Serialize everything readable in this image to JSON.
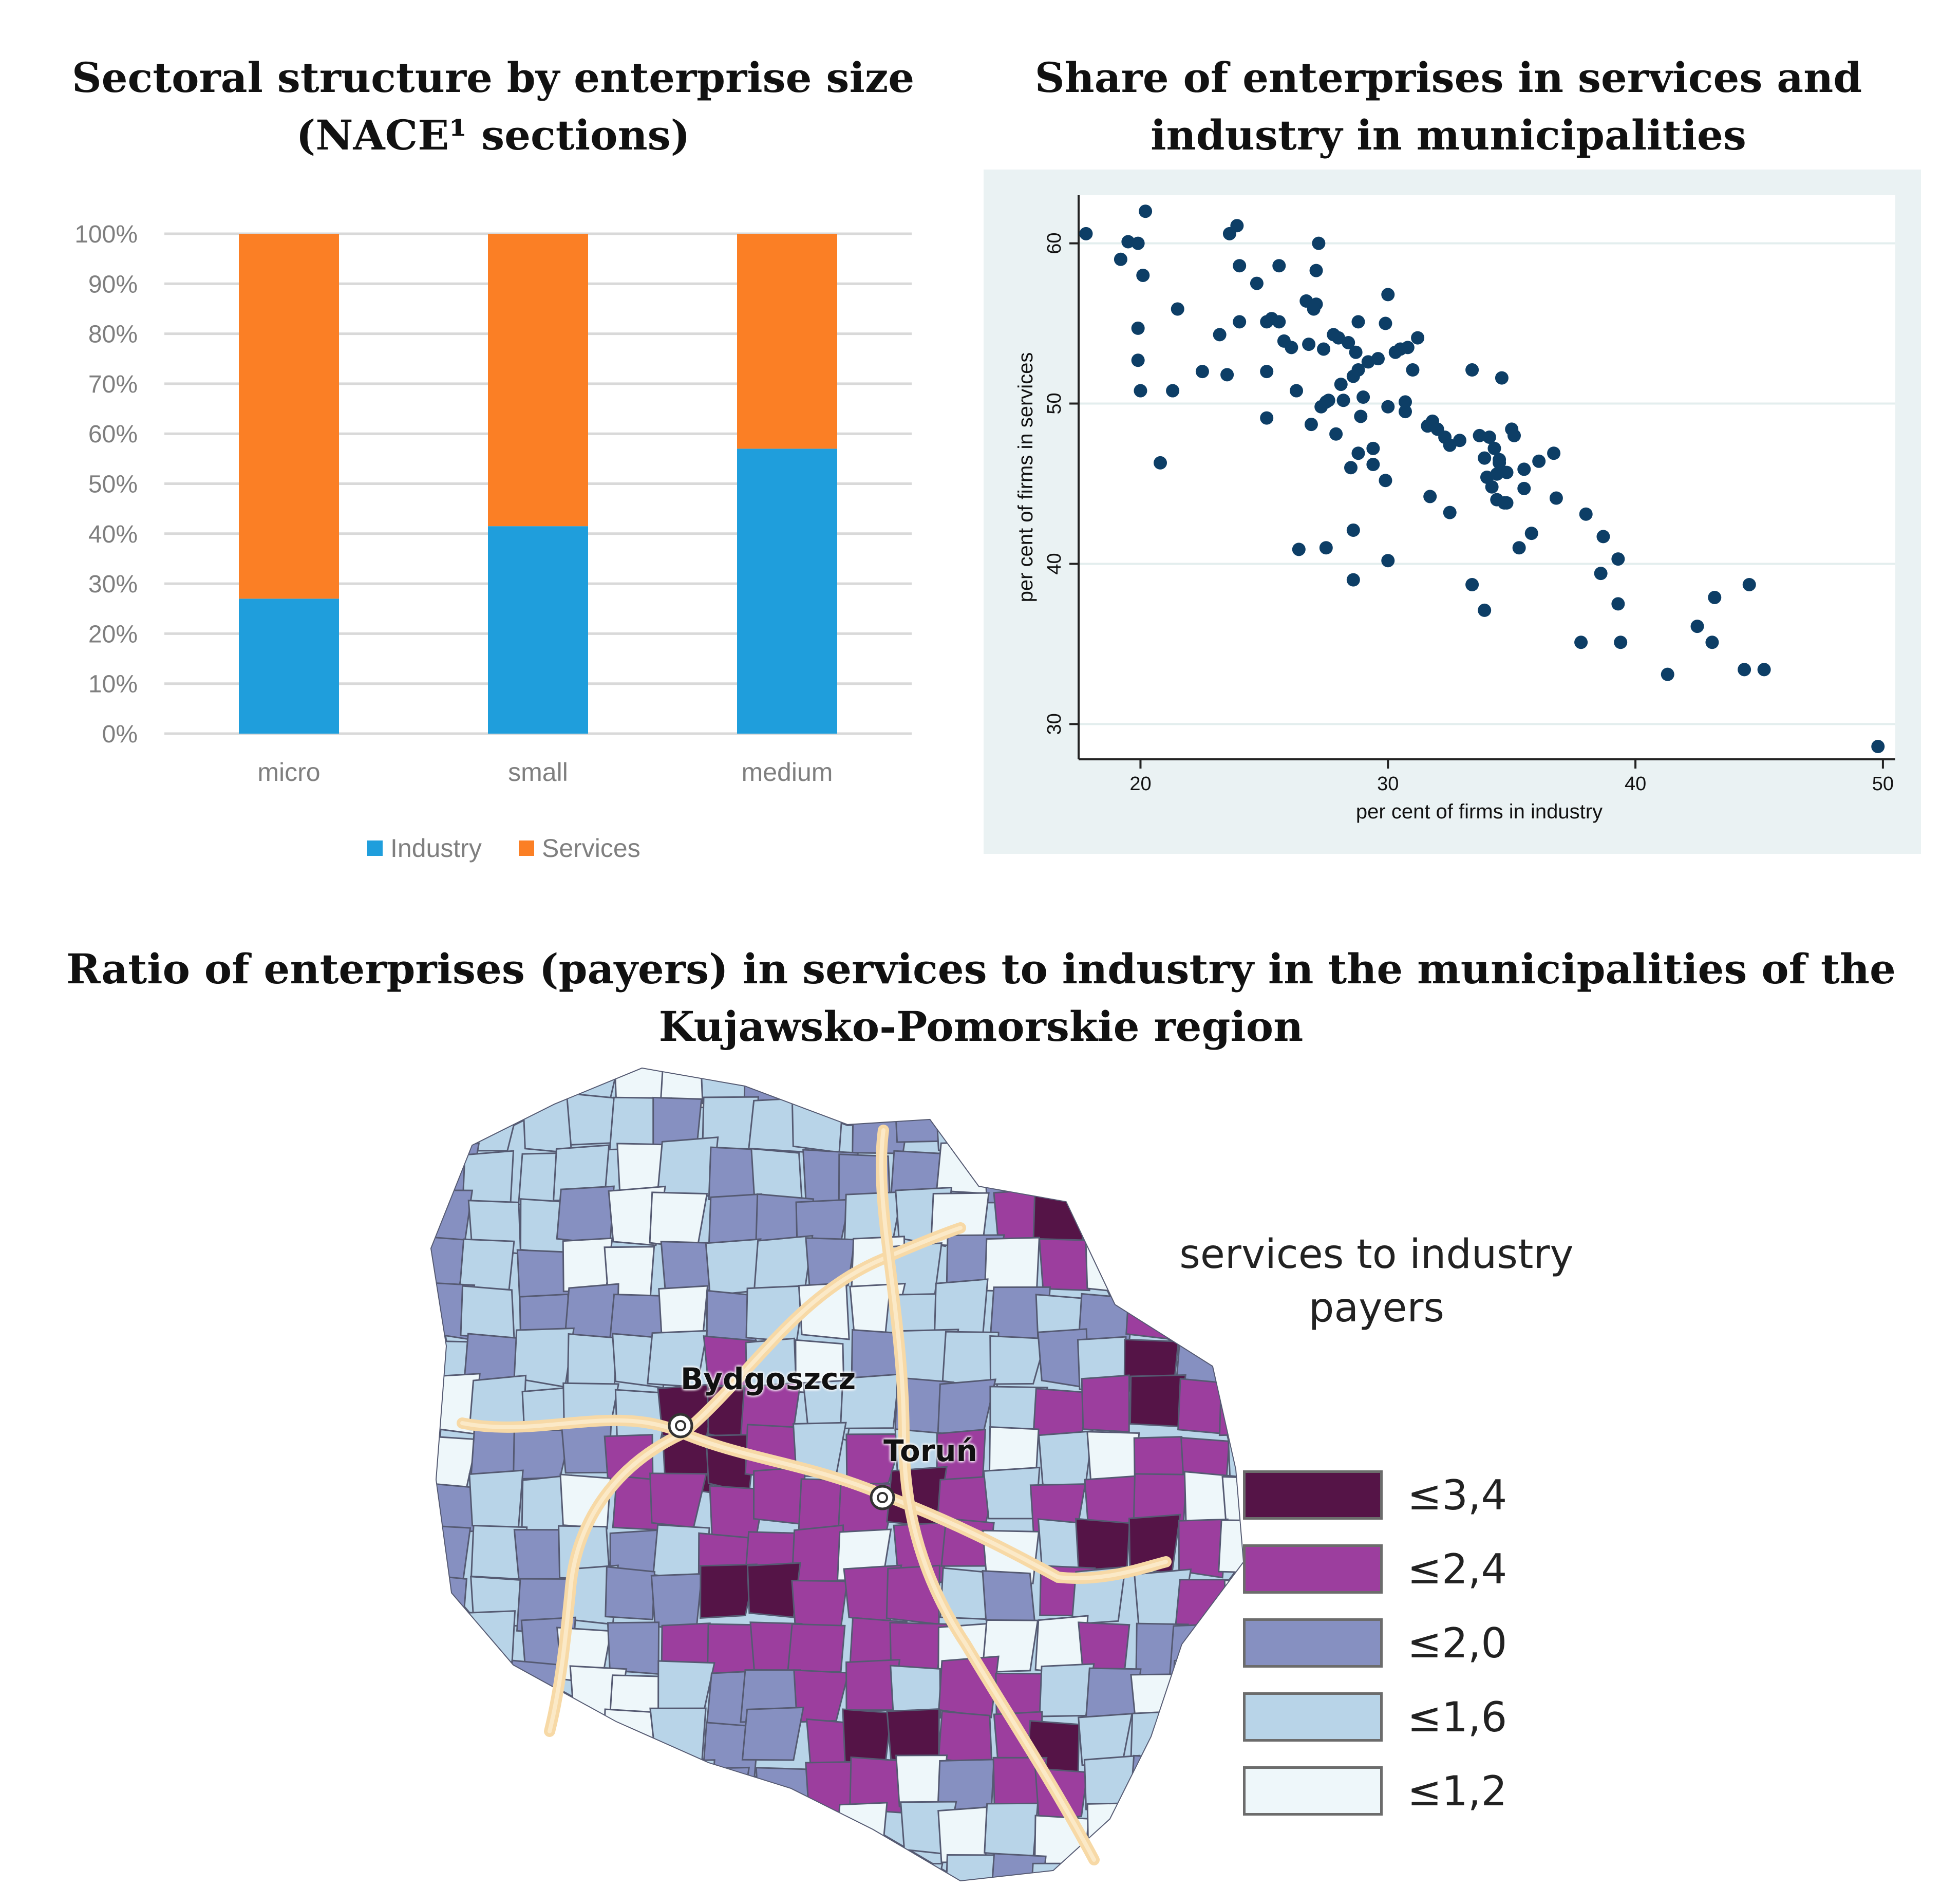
{
  "titles": {
    "bar": "Sectoral structure by enterprise size (NACE¹ sections)",
    "scatter": "Share of enterprises in services and industry in municipalities",
    "map": "Ratio of enterprises (payers) in services to industry in the municipalities of the Kujawsko-Pomorskie region"
  },
  "colors": {
    "industry": "#1f9edc",
    "services": "#fb7f25",
    "scatter_point": "#0d3e66",
    "scatter_bg": "#eaf2f3",
    "map_roads": "#f7d9a6",
    "road_core": "#fbe9c7",
    "map_border": "#555a72"
  },
  "chart_data": [
    {
      "type": "bar",
      "stacked": true,
      "title": "Sectoral structure by enterprise size (NACE¹ sections)",
      "categories": [
        "micro",
        "small",
        "medium"
      ],
      "series": [
        {
          "name": "Industry",
          "values": [
            27,
            41.5,
            57
          ]
        },
        {
          "name": "Services",
          "values": [
            73,
            58.5,
            43
          ]
        }
      ],
      "ylim": [
        0,
        100
      ],
      "yticks": [
        "0%",
        "10%",
        "20%",
        "30%",
        "40%",
        "50%",
        "60%",
        "70%",
        "80%",
        "90%",
        "100%"
      ],
      "legend": [
        "Industry",
        "Services"
      ],
      "legend_position": "bottom"
    },
    {
      "type": "scatter",
      "title": "Share of enterprises in services and industry in municipalities",
      "xlabel": "per cent of firms in industry",
      "ylabel": "per cent of firms in services",
      "xlim": [
        17.5,
        50.5
      ],
      "ylim": [
        27.8,
        63.0
      ],
      "xticks": [
        "20",
        "30",
        "40",
        "50"
      ],
      "yticks": [
        "30",
        "40",
        "50",
        "60"
      ],
      "x": [
        17.8,
        19.2,
        19.5,
        20.2,
        19.9,
        20.1,
        21.5,
        19.9,
        19.9,
        20.0,
        20.8,
        21.3,
        22.5,
        23.2,
        23.6,
        23.5,
        24.0,
        23.9,
        24.0,
        24.7,
        25.1,
        25.3,
        25.6,
        25.1,
        25.1,
        25.6,
        25.8,
        26.1,
        26.3,
        26.7,
        26.8,
        27.0,
        27.1,
        27.2,
        27.1,
        26.9,
        27.3,
        27.4,
        27.6,
        27.8,
        27.9,
        28.1,
        28.0,
        28.2,
        28.4,
        28.6,
        28.7,
        28.8,
        28.8,
        29.0,
        29.2,
        29.4,
        29.6,
        29.9,
        30.0,
        30.3,
        30.5,
        30.7,
        30.7,
        30.8,
        31.0,
        31.2,
        27.5,
        28.9,
        29.4,
        28.6,
        28.5,
        28.8,
        29.9,
        30.0,
        31.6,
        31.8,
        32.0,
        32.3,
        32.5,
        32.9,
        33.4,
        33.7,
        33.9,
        34.1,
        34.3,
        34.5,
        34.6,
        34.8,
        35.0,
        35.1,
        35.5,
        35.5,
        35.8,
        36.1,
        36.7,
        36.8,
        34.2,
        34.0,
        34.4,
        34.4,
        34.8,
        31.7,
        32.5,
        33.4,
        33.9,
        35.3,
        34.7,
        34.5,
        26.4,
        27.5,
        30.0,
        28.6,
        37.8,
        38.0,
        38.6,
        38.7,
        39.3,
        39.4,
        39.3,
        41.3,
        42.5,
        43.2,
        43.1,
        44.4,
        44.6,
        45.2,
        49.8
      ],
      "y": [
        60.6,
        59.0,
        60.1,
        62.0,
        60.0,
        58.0,
        55.9,
        54.7,
        52.7,
        50.8,
        46.3,
        50.8,
        52.0,
        54.3,
        60.6,
        51.8,
        55.1,
        61.1,
        58.6,
        57.5,
        55.1,
        55.3,
        55.1,
        52.0,
        49.1,
        58.6,
        53.9,
        53.5,
        50.8,
        56.4,
        53.7,
        55.9,
        58.3,
        60.0,
        56.2,
        48.7,
        49.8,
        53.4,
        50.2,
        54.3,
        48.1,
        51.2,
        54.1,
        50.2,
        53.8,
        51.7,
        53.2,
        52.1,
        55.1,
        50.4,
        52.6,
        46.2,
        52.8,
        55.0,
        56.8,
        53.2,
        53.4,
        49.5,
        50.1,
        53.5,
        52.1,
        54.1,
        50.1,
        49.2,
        47.2,
        42.1,
        46.0,
        46.9,
        45.2,
        49.8,
        48.6,
        48.9,
        48.4,
        47.9,
        47.4,
        47.7,
        52.1,
        48.0,
        46.6,
        47.9,
        47.2,
        46.3,
        51.6,
        45.7,
        48.4,
        48.0,
        45.9,
        44.7,
        41.9,
        46.4,
        46.9,
        44.1,
        44.8,
        45.4,
        44.0,
        45.6,
        43.8,
        44.2,
        43.2,
        38.7,
        37.1,
        41.0,
        43.8,
        46.5,
        40.9,
        41.0,
        40.2,
        39.0,
        35.1,
        43.1,
        39.4,
        41.7,
        37.5,
        35.1,
        40.3,
        33.1,
        36.1,
        37.9,
        35.1,
        33.4,
        38.7,
        33.4,
        28.6
      ]
    }
  ],
  "map": {
    "title": "services to industry payers",
    "cities": [
      "Bydgoszcz",
      "Toruń"
    ],
    "legend": [
      {
        "label": "≤3,4",
        "color": "#551447"
      },
      {
        "label": "≤2,4",
        "color": "#9c3e9e"
      },
      {
        "label": "≤2,0",
        "color": "#8690c1"
      },
      {
        "label": "≤1,6",
        "color": "#b8d4e8"
      },
      {
        "label": "≤1,2",
        "color": "#eef7fa"
      }
    ]
  }
}
